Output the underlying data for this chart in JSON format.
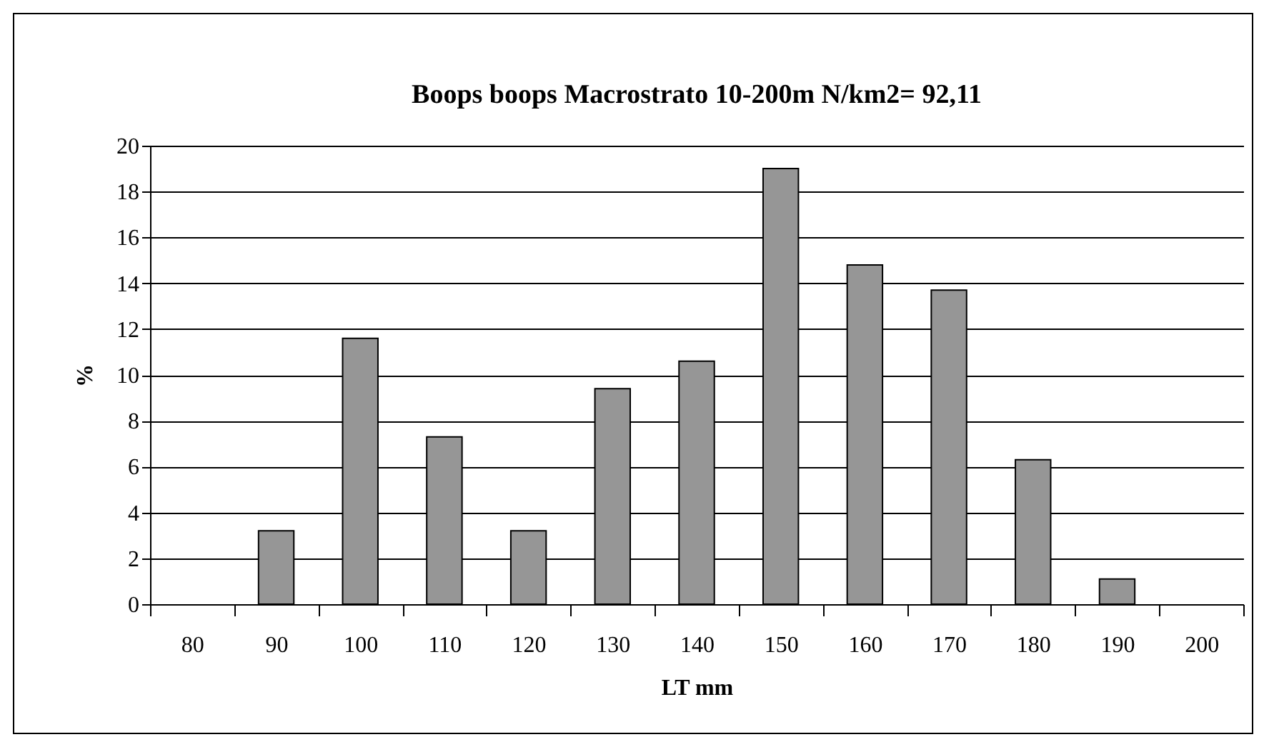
{
  "chart_data": {
    "type": "bar",
    "title": "Boops boops  Macrostrato 10-200m N/km2= 92,11",
    "xlabel": "LT mm",
    "ylabel": "%",
    "categories": [
      "80",
      "90",
      "100",
      "110",
      "120",
      "130",
      "140",
      "150",
      "160",
      "170",
      "180",
      "190",
      "200"
    ],
    "values": [
      null,
      3.2,
      11.6,
      7.3,
      3.2,
      9.4,
      10.6,
      19.0,
      14.8,
      13.7,
      6.3,
      1.1,
      null
    ],
    "color": "#969696",
    "ylim": [
      0,
      20
    ],
    "yticks": [
      0,
      2,
      4,
      6,
      8,
      10,
      12,
      14,
      16,
      18,
      20
    ],
    "grid": "y"
  }
}
